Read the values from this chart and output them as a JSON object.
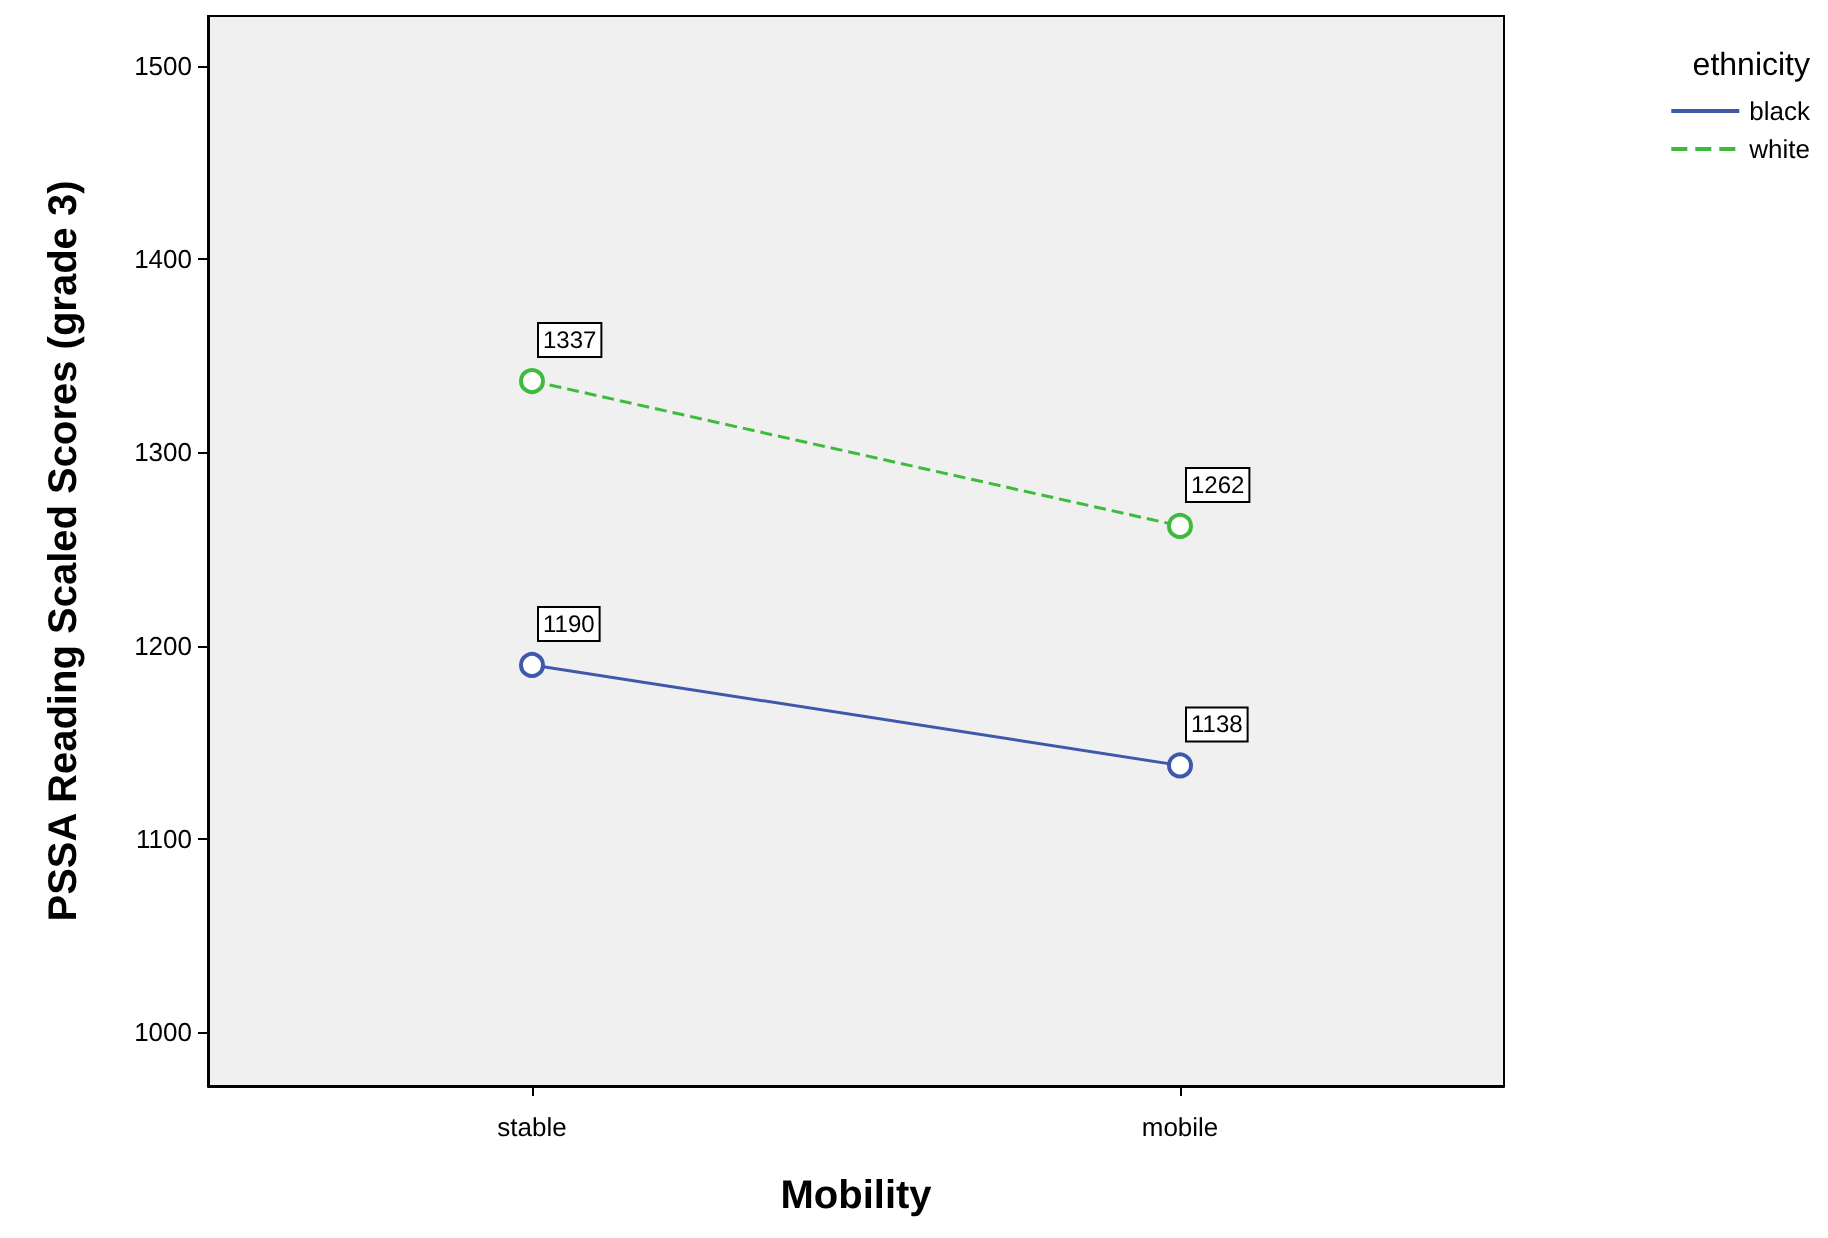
{
  "chart_data": {
    "type": "line",
    "xlabel": "Mobility",
    "ylabel": "PSSA Reading Scaled Scores (grade 3)",
    "legend_title": "ethnicity",
    "categories": [
      "stable",
      "mobile"
    ],
    "series": [
      {
        "name": "black",
        "color": "#3e58ac",
        "values": [
          1190,
          1138
        ],
        "line_style": "solid"
      },
      {
        "name": "white",
        "color": "#3dbb3d",
        "values": [
          1337,
          1262
        ],
        "line_style": "dashed"
      }
    ],
    "ylim": [
      972,
      1526
    ],
    "yticks": [
      1000,
      1100,
      1200,
      1300,
      1400,
      1500
    ],
    "grid": false,
    "legend": "top right",
    "marker": "circle",
    "data_labels": true
  }
}
